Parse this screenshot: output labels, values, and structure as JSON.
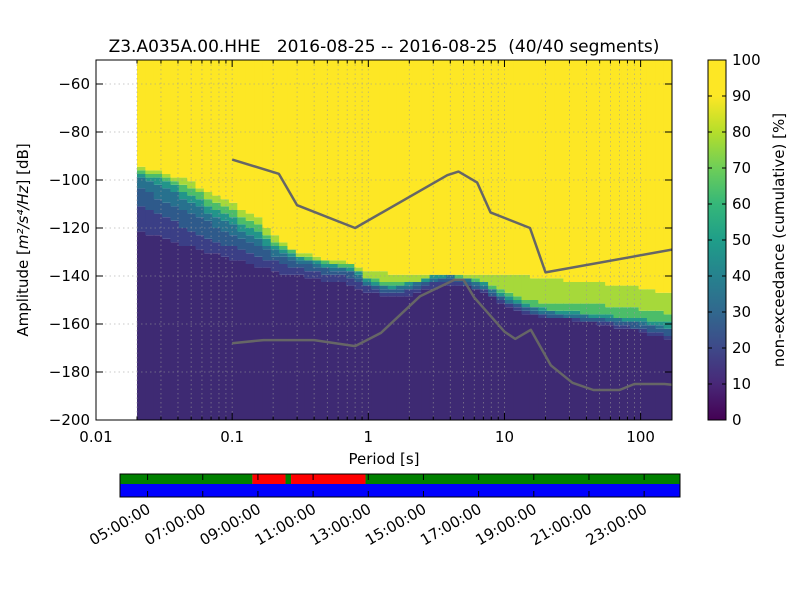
{
  "chart_data": {
    "type": "heatmap",
    "title": "Z3.A035A.00.HHE   2016-08-25 -- 2016-08-25  (40/40 segments)",
    "xlabel": "Period [s]",
    "ylabel_prefix": "Amplitude [",
    "ylabel_math": "m²/s⁴/Hz",
    "ylabel_suffix": "] [dB]",
    "x_scale": "log",
    "xlim": [
      0.01,
      170
    ],
    "ylim": [
      -200,
      -50
    ],
    "x_ticks": [
      {
        "value": 0.01,
        "label": "0.01"
      },
      {
        "value": 0.1,
        "label": "0.1"
      },
      {
        "value": 1,
        "label": "1"
      },
      {
        "value": 10,
        "label": "10"
      },
      {
        "value": 100,
        "label": "100"
      }
    ],
    "y_ticks": [
      {
        "value": -60,
        "label": "−60"
      },
      {
        "value": -80,
        "label": "−80"
      },
      {
        "value": -100,
        "label": "−100"
      },
      {
        "value": -120,
        "label": "−120"
      },
      {
        "value": -140,
        "label": "−140"
      },
      {
        "value": -160,
        "label": "−160"
      },
      {
        "value": -180,
        "label": "−180"
      },
      {
        "value": -200,
        "label": "−200"
      }
    ],
    "grid": true,
    "colorbar": {
      "label": "non-exceedance (cumulative) [%]",
      "range": [
        0,
        100
      ],
      "ticks": [
        "0",
        "10",
        "20",
        "30",
        "40",
        "50",
        "60",
        "70",
        "80",
        "90",
        "100"
      ],
      "colormap": "viridis"
    },
    "data_start_period": 0.02,
    "percentile_profile": {
      "period": [
        0.02,
        0.03,
        0.05,
        0.08,
        0.1,
        0.15,
        0.2,
        0.3,
        0.5,
        0.8,
        1,
        1.5,
        2,
        3,
        4,
        5,
        7,
        10,
        15,
        20,
        30,
        50,
        100,
        170
      ],
      "p10": [
        -121,
        -124,
        -128,
        -131,
        -133,
        -136,
        -138,
        -140,
        -142,
        -144,
        -147,
        -149,
        -148,
        -145,
        -144,
        -144,
        -147,
        -152,
        -156,
        -157,
        -158,
        -160,
        -163,
        -167
      ],
      "p20": [
        -110,
        -115,
        -121,
        -126,
        -128,
        -131,
        -134,
        -137,
        -139,
        -141,
        -145,
        -147,
        -146,
        -143,
        -142,
        -143,
        -146,
        -151,
        -155,
        -157,
        -158,
        -159,
        -162,
        -165
      ],
      "p30": [
        -103,
        -108,
        -114,
        -120,
        -123,
        -127,
        -131,
        -135,
        -137,
        -139,
        -144,
        -146,
        -145,
        -142,
        -141,
        -142,
        -145,
        -150,
        -154,
        -156,
        -157,
        -158,
        -160,
        -163
      ],
      "p40": [
        -99,
        -103,
        -109,
        -116,
        -119,
        -124,
        -129,
        -133,
        -136,
        -138,
        -143,
        -145,
        -144,
        -141,
        -140,
        -141,
        -144,
        -149,
        -153,
        -155,
        -156,
        -157,
        -159,
        -162
      ],
      "p50": [
        -97,
        -100,
        -106,
        -113,
        -116,
        -121,
        -127,
        -132,
        -135,
        -137,
        -142,
        -144,
        -143,
        -140,
        -140,
        -141,
        -143,
        -148,
        -152,
        -154,
        -155,
        -156,
        -158,
        -160
      ],
      "p70": [
        -96,
        -98,
        -103,
        -110,
        -113,
        -118,
        -125,
        -131,
        -134,
        -136,
        -141,
        -143,
        -143,
        -140,
        -139,
        -140,
        -142,
        -146,
        -150,
        -152,
        -152,
        -152,
        -154,
        -156
      ],
      "p90": [
        -95,
        -96,
        -101,
        -107,
        -110,
        -115,
        -123,
        -130,
        -133,
        -135,
        -138,
        -139,
        -139,
        -139,
        -139,
        -139,
        -140,
        -140,
        -140,
        -141,
        -142,
        -143,
        -145,
        -148
      ]
    },
    "reference_models": [
      {
        "period": [
          0.1,
          0.22,
          0.3,
          0.8,
          3.8,
          4.6,
          6.3,
          7.9,
          15.4,
          20,
          170
        ],
        "db": [
          -91.5,
          -97.4,
          -110.5,
          -120,
          -98,
          -96.5,
          -101,
          -113.5,
          -120,
          -138.5,
          -129
        ]
      },
      {
        "period": [
          0.1,
          0.17,
          0.4,
          0.8,
          1.24,
          2.4,
          4.3,
          5,
          6,
          10,
          12,
          15.6,
          21.9,
          31.6,
          45,
          70,
          90,
          150,
          170
        ],
        "db": [
          -168,
          -166.7,
          -166.7,
          -169.2,
          -163.7,
          -148.4,
          -141.6,
          -141.6,
          -149,
          -163.2,
          -166.2,
          -162.4,
          -177.2,
          -184.5,
          -187.5,
          -187.5,
          -185,
          -185,
          -185.3
        ]
      }
    ]
  },
  "timeline": {
    "tick_labels": [
      "05:00:00",
      "07:00:00",
      "09:00:00",
      "11:00:00",
      "13:00:00",
      "15:00:00",
      "17:00:00",
      "19:00:00",
      "21:00:00",
      "23:00:00"
    ],
    "tick_hours": [
      5,
      7,
      9,
      11,
      13,
      15,
      17,
      19,
      21,
      23
    ],
    "range_hours": [
      4.0,
      24.3
    ],
    "colors": {
      "used": "#008000",
      "excluded": "#ff0000",
      "available": "#0000ff"
    },
    "top_bar": [
      {
        "start": 4.0,
        "end": 8.8,
        "status": "used"
      },
      {
        "start": 8.8,
        "end": 10.0,
        "status": "excluded"
      },
      {
        "start": 10.0,
        "end": 10.2,
        "status": "used"
      },
      {
        "start": 10.2,
        "end": 12.9,
        "status": "excluded"
      },
      {
        "start": 12.9,
        "end": 24.3,
        "status": "used"
      }
    ],
    "bottom_bar": [
      {
        "start": 4.0,
        "end": 24.3,
        "status": "available"
      }
    ]
  }
}
